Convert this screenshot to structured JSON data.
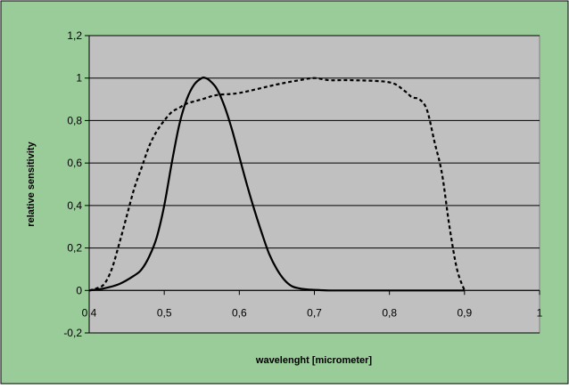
{
  "chart_data": {
    "type": "line",
    "title": "",
    "xlabel": "wavelenght [micrometer]",
    "ylabel": "relative sensitivity",
    "xlim": [
      0.4,
      1.0
    ],
    "ylim": [
      -0.2,
      1.2
    ],
    "x_ticks": [
      {
        "value": 0.4,
        "label": "0,4"
      },
      {
        "value": 0.5,
        "label": "0,5"
      },
      {
        "value": 0.6,
        "label": "0,6"
      },
      {
        "value": 0.7,
        "label": "0,7"
      },
      {
        "value": 0.8,
        "label": "0,8"
      },
      {
        "value": 0.9,
        "label": "0,9"
      },
      {
        "value": 1.0,
        "label": "1"
      }
    ],
    "y_ticks": [
      {
        "value": 1.2,
        "label": "1,2"
      },
      {
        "value": 1.0,
        "label": "1"
      },
      {
        "value": 0.8,
        "label": "0,8"
      },
      {
        "value": 0.6,
        "label": "0,6"
      },
      {
        "value": 0.4,
        "label": "0,4"
      },
      {
        "value": 0.2,
        "label": "0,2"
      },
      {
        "value": 0.0,
        "label": "0"
      },
      {
        "value": -0.2,
        "label": "-0,2"
      }
    ],
    "grid": true,
    "legend": "none",
    "colors": {
      "outer_background": "#99cc99",
      "plot_background": "#c0c0c0",
      "gridline": "#000000",
      "series": "#000000"
    },
    "series": [
      {
        "style": "solid",
        "x": [
          0.4,
          0.42,
          0.44,
          0.46,
          0.47,
          0.48,
          0.49,
          0.5,
          0.51,
          0.52,
          0.53,
          0.54,
          0.55,
          0.555,
          0.56,
          0.57,
          0.58,
          0.59,
          0.6,
          0.61,
          0.62,
          0.63,
          0.64,
          0.65,
          0.66,
          0.67,
          0.68,
          0.69,
          0.7,
          0.72,
          0.75,
          0.8,
          0.85,
          0.9
        ],
        "y": [
          0.0,
          0.01,
          0.03,
          0.07,
          0.1,
          0.16,
          0.25,
          0.4,
          0.6,
          0.78,
          0.9,
          0.97,
          1.0,
          1.0,
          0.99,
          0.95,
          0.87,
          0.76,
          0.63,
          0.5,
          0.38,
          0.27,
          0.17,
          0.1,
          0.05,
          0.02,
          0.01,
          0.005,
          0.003,
          0.0,
          0.0,
          0.0,
          0.0,
          0.0
        ]
      },
      {
        "style": "dashed",
        "x": [
          0.4,
          0.41,
          0.42,
          0.43,
          0.44,
          0.45,
          0.46,
          0.47,
          0.48,
          0.49,
          0.5,
          0.51,
          0.52,
          0.53,
          0.55,
          0.57,
          0.6,
          0.65,
          0.68,
          0.7,
          0.72,
          0.75,
          0.8,
          0.82,
          0.83,
          0.84,
          0.85,
          0.86,
          0.87,
          0.88,
          0.89,
          0.9
        ],
        "y": [
          0.0,
          0.01,
          0.03,
          0.1,
          0.22,
          0.35,
          0.48,
          0.58,
          0.68,
          0.75,
          0.8,
          0.84,
          0.86,
          0.88,
          0.9,
          0.92,
          0.93,
          0.97,
          0.99,
          1.0,
          0.99,
          0.99,
          0.98,
          0.94,
          0.91,
          0.9,
          0.85,
          0.7,
          0.55,
          0.3,
          0.1,
          0.0
        ]
      }
    ]
  }
}
